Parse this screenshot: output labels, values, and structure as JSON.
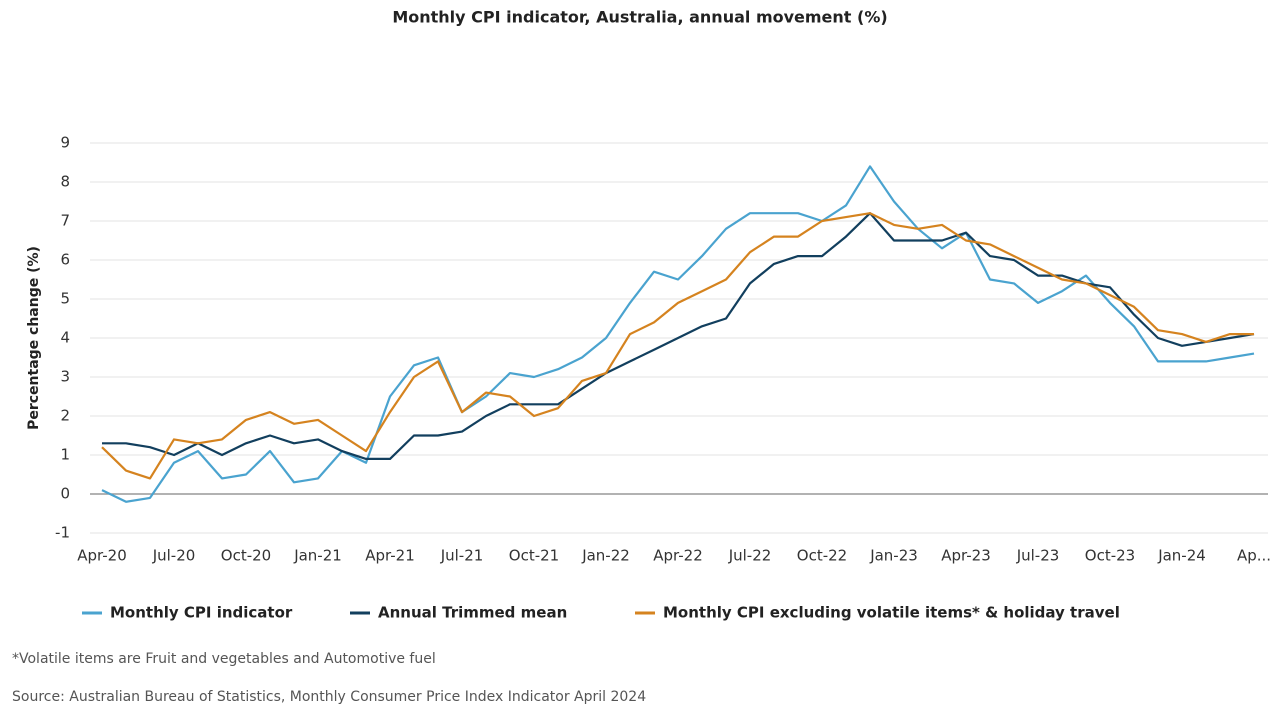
{
  "chart_data": {
    "type": "line",
    "title": "Monthly CPI indicator, Australia, annual movement (%)",
    "y_label": "Percentage change (%)",
    "categories": [
      "Apr-20",
      null,
      null,
      "Jul-20",
      null,
      null,
      "Oct-20",
      null,
      null,
      "Jan-21",
      null,
      null,
      "Apr-21",
      null,
      null,
      "Jul-21",
      null,
      null,
      "Oct-21",
      null,
      null,
      "Jan-22",
      null,
      null,
      "Apr-22",
      null,
      null,
      "Jul-22",
      null,
      null,
      "Oct-22",
      null,
      null,
      "Jan-23",
      null,
      null,
      "Apr-23",
      null,
      null,
      "Jul-23",
      null,
      null,
      "Oct-23",
      null,
      null,
      "Jan-24",
      null,
      null,
      "Ap..."
    ],
    "series": [
      {
        "name": "Monthly CPI indicator",
        "color": "#4aa3cf",
        "values": [
          0.1,
          -0.2,
          -0.1,
          0.8,
          1.1,
          0.4,
          0.5,
          1.1,
          0.3,
          0.4,
          1.1,
          0.8,
          2.5,
          3.3,
          3.5,
          2.1,
          2.5,
          3.1,
          3.0,
          3.2,
          3.5,
          4.0,
          4.9,
          5.7,
          5.5,
          6.1,
          6.8,
          7.2,
          7.2,
          7.2,
          7.0,
          7.4,
          8.4,
          7.5,
          6.8,
          6.3,
          6.7,
          5.5,
          5.4,
          4.9,
          5.2,
          5.6,
          4.9,
          4.3,
          3.4,
          3.4,
          3.4,
          3.5,
          3.6
        ]
      },
      {
        "name": "Annual Trimmed mean",
        "color": "#123f5e",
        "values": [
          1.3,
          1.3,
          1.2,
          1.0,
          1.3,
          1.0,
          1.3,
          1.5,
          1.3,
          1.4,
          1.1,
          0.9,
          0.9,
          1.5,
          1.5,
          1.6,
          2.0,
          2.3,
          2.3,
          2.3,
          2.7,
          3.1,
          3.4,
          3.7,
          4.0,
          4.3,
          4.5,
          5.4,
          5.9,
          6.1,
          6.1,
          6.6,
          7.2,
          6.5,
          6.5,
          6.5,
          6.7,
          6.1,
          6.0,
          5.6,
          5.6,
          5.4,
          5.3,
          4.6,
          4.0,
          3.8,
          3.9,
          4.0,
          4.1
        ]
      },
      {
        "name": "Monthly CPI excluding volatile items* & holiday travel",
        "color": "#d5831f",
        "values": [
          1.2,
          0.6,
          0.4,
          1.4,
          1.3,
          1.4,
          1.9,
          2.1,
          1.8,
          1.9,
          1.5,
          1.1,
          2.1,
          3.0,
          3.4,
          2.1,
          2.6,
          2.5,
          2.0,
          2.2,
          2.9,
          3.1,
          4.1,
          4.4,
          4.9,
          5.2,
          5.5,
          6.2,
          6.6,
          6.6,
          7.0,
          7.1,
          7.2,
          6.9,
          6.8,
          6.9,
          6.5,
          6.4,
          6.1,
          5.8,
          5.5,
          5.4,
          5.1,
          4.8,
          4.2,
          4.1,
          3.9,
          4.1,
          4.1
        ]
      }
    ],
    "ylim": [
      -1,
      9
    ],
    "yticks": [
      -1,
      0,
      1,
      2,
      3,
      4,
      5,
      6,
      7,
      8,
      9
    ],
    "grid": true,
    "legend": "bottom",
    "note": "*Volatile items are Fruit and vegetables and Automotive fuel",
    "source": "Source: Australian Bureau of Statistics, Monthly Consumer Price Index Indicator April 2024"
  }
}
